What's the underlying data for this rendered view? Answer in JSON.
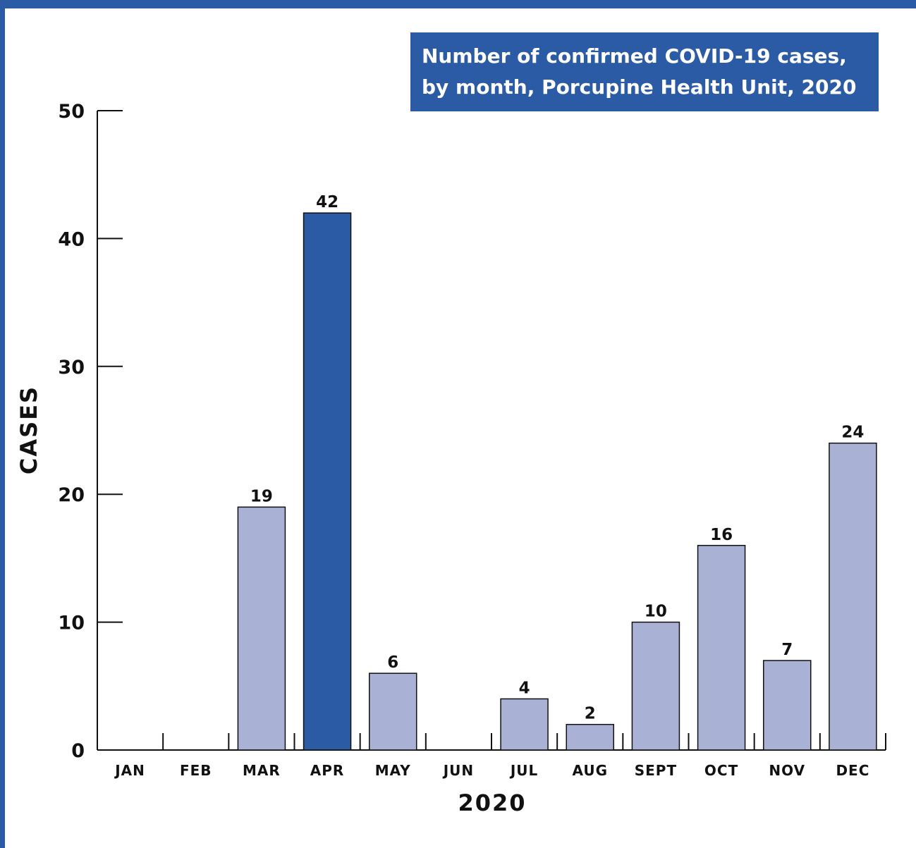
{
  "chart_data": {
    "type": "bar",
    "title_lines": [
      "Number of confirmed COVID-19 cases,",
      "by month, Porcupine Health Unit, 2020"
    ],
    "xlabel": "2020",
    "ylabel": "CASES",
    "ylim": [
      0,
      50
    ],
    "yticks": [
      0,
      10,
      20,
      30,
      40,
      50
    ],
    "categories": [
      "JAN",
      "FEB",
      "MAR",
      "APR",
      "MAY",
      "JUN",
      "JUL",
      "AUG",
      "SEPT",
      "OCT",
      "NOV",
      "DEC"
    ],
    "values": [
      0,
      0,
      19,
      42,
      6,
      0,
      4,
      2,
      10,
      16,
      7,
      24
    ],
    "data_labels": [
      "",
      "",
      "19",
      "42",
      "6",
      "",
      "4",
      "2",
      "10",
      "16",
      "7",
      "24"
    ],
    "highlight_category": "APR",
    "colors": {
      "bar": "#a9b1d5",
      "highlight": "#2a5ba4",
      "title_bg": "#2a5ba4",
      "frame": "#2a5ba4"
    },
    "grid": false
  }
}
